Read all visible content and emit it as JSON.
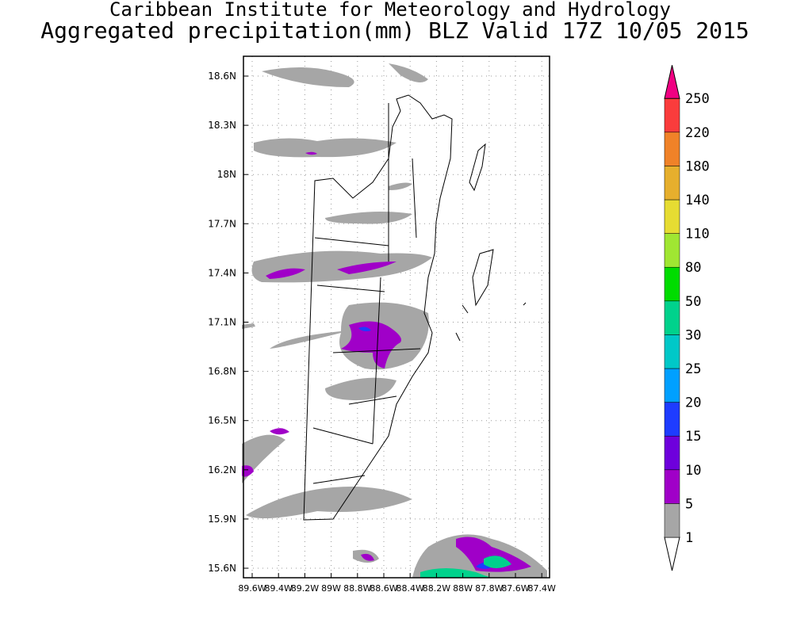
{
  "header": {
    "title": "Caribbean Institute for Meteorology and Hydrology",
    "subtitle": "Aggregated precipitation(mm) BLZ Valid 17Z 10/05 2015"
  },
  "map": {
    "lat_ticks": [
      "18.6N",
      "18.3N",
      "18N",
      "17.7N",
      "17.4N",
      "17.1N",
      "16.8N",
      "16.5N",
      "16.2N",
      "15.9N",
      "15.6N"
    ],
    "lon_ticks": [
      "89.6W",
      "89.4W",
      "89.2W",
      "89W",
      "88.8W",
      "88.6W",
      "88.4W",
      "88.2W",
      "88W",
      "87.8W",
      "87.6W",
      "87.4W"
    ]
  },
  "colorbar": {
    "levels": [
      1,
      5,
      10,
      15,
      20,
      25,
      30,
      50,
      80,
      110,
      140,
      180,
      220,
      250
    ],
    "colors": [
      "#ffffff",
      "#a6a6a6",
      "#a000c8",
      "#6e00dc",
      "#1e3cff",
      "#00a0ff",
      "#00c8c8",
      "#00d28c",
      "#00dc00",
      "#a0e632",
      "#e6dc32",
      "#e6af2d",
      "#f08228",
      "#fa3c3c",
      "#f00082"
    ]
  }
}
